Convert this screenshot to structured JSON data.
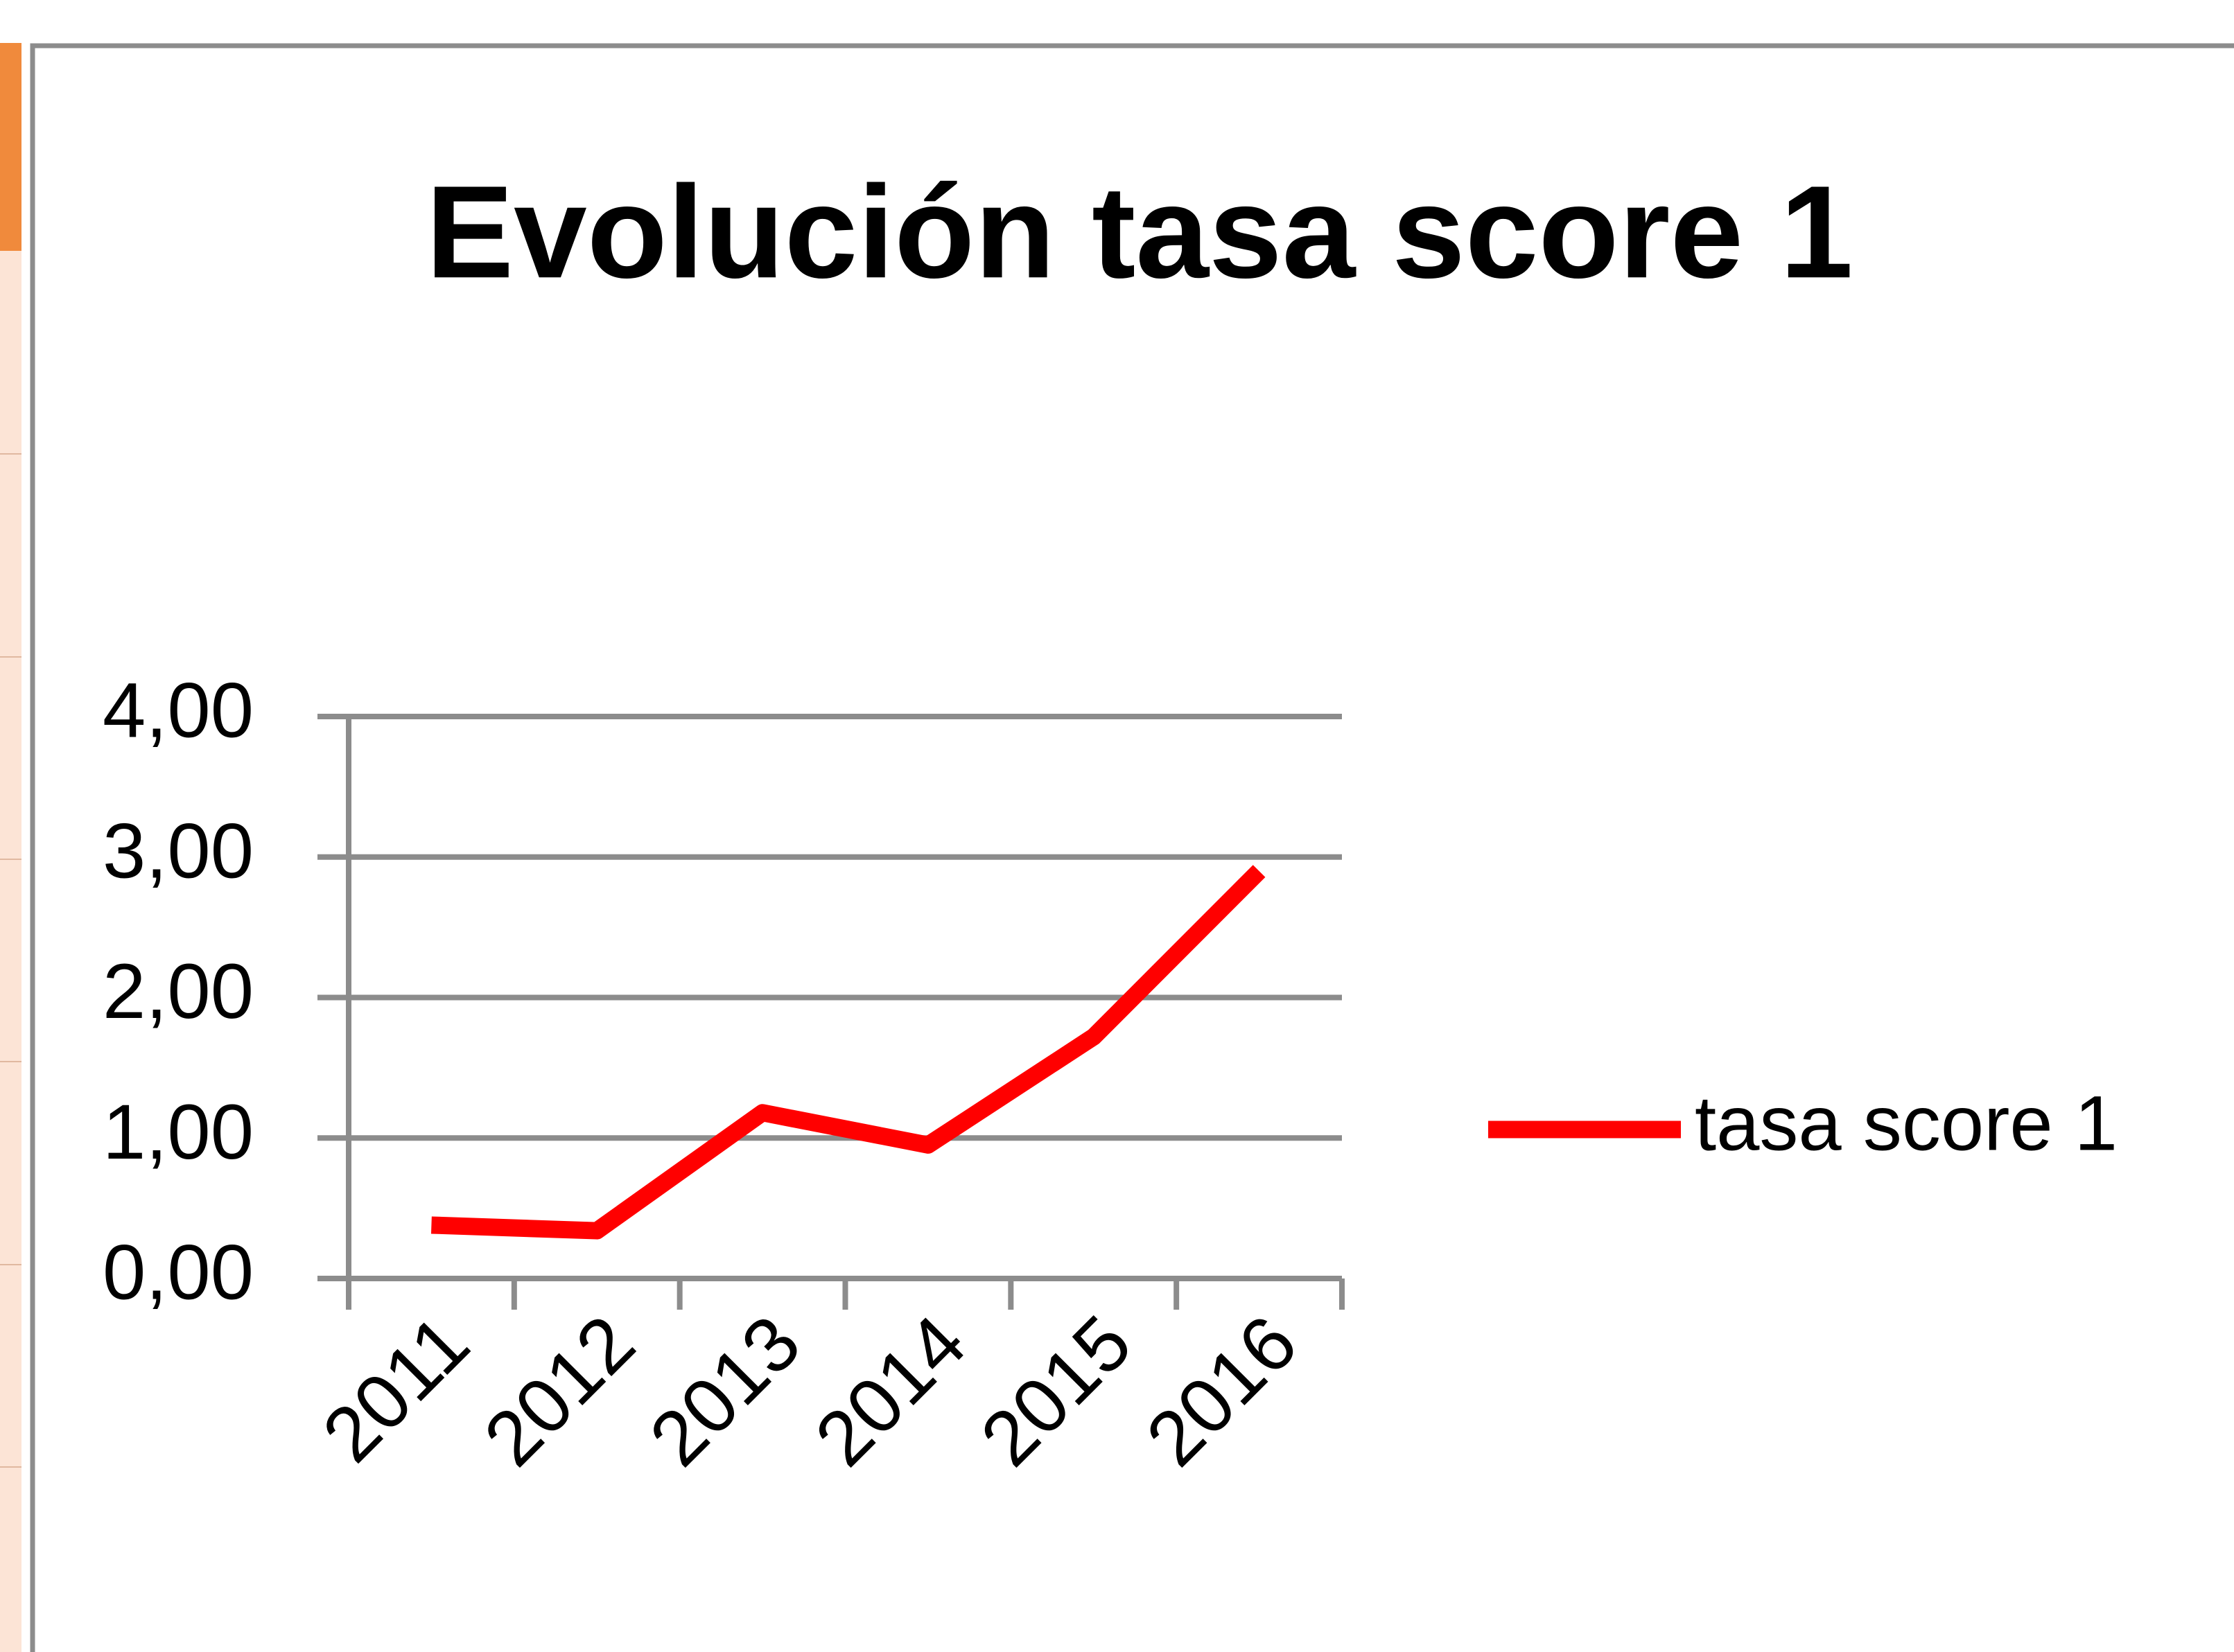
{
  "chart_data": {
    "type": "line",
    "title": "Evolución tasa score 1",
    "categories": [
      "2011",
      "2012",
      "2013",
      "2014",
      "2015",
      "2016"
    ],
    "series": [
      {
        "name": "tasa score 1",
        "color": "#ff0000",
        "values": [
          0.38,
          0.34,
          1.18,
          0.95,
          1.72,
          2.9
        ]
      }
    ],
    "ylim": [
      0,
      4
    ],
    "yticks": [
      {
        "value": 0,
        "label": "0,00"
      },
      {
        "value": 1,
        "label": "1,00"
      },
      {
        "value": 2,
        "label": "2,00"
      },
      {
        "value": 3,
        "label": "3,00"
      },
      {
        "value": 4,
        "label": "4,00"
      }
    ],
    "grid": true,
    "legend": "right"
  }
}
